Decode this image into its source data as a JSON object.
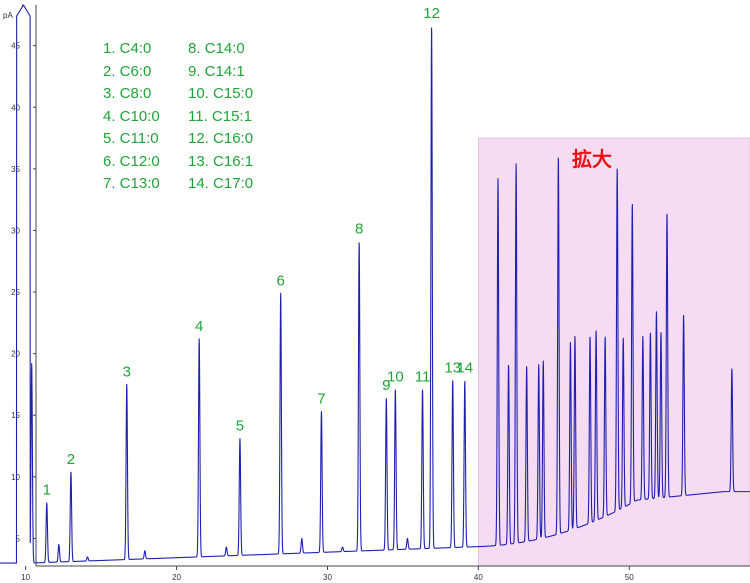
{
  "chart_data": {
    "type": "line",
    "y_unit": "pA",
    "xlim": [
      8.3,
      58
    ],
    "ylim": [
      2.6,
      48.3
    ],
    "x_ticks": [
      "10",
      "20",
      "30",
      "40",
      "50"
    ],
    "y_ticks": [
      "5",
      "10",
      "15",
      "20",
      "25",
      "30",
      "35",
      "40",
      "45"
    ],
    "series_color": "#2020b0",
    "peaks": [
      {
        "label": "1",
        "x": 11.4,
        "y": 7.9
      },
      {
        "label": "2",
        "x": 13.0,
        "y": 10.4
      },
      {
        "label": "3",
        "x": 16.7,
        "y": 17.5
      },
      {
        "label": "4",
        "x": 21.5,
        "y": 21.2
      },
      {
        "label": "5",
        "x": 24.2,
        "y": 13.1
      },
      {
        "label": "6",
        "x": 26.9,
        "y": 24.9
      },
      {
        "label": "7",
        "x": 29.6,
        "y": 15.3
      },
      {
        "label": "8",
        "x": 32.1,
        "y": 29.1
      },
      {
        "label": "9",
        "x": 33.9,
        "y": 16.4
      },
      {
        "label": "10",
        "x": 34.5,
        "y": 17.1
      },
      {
        "label": "11",
        "x": 36.3,
        "y": 17.1
      },
      {
        "label": "12",
        "x": 36.9,
        "y": 46.6
      },
      {
        "label": "13",
        "x": 38.3,
        "y": 17.8
      },
      {
        "label": "14",
        "x": 39.1,
        "y": 17.8
      }
    ],
    "minor_peaks": [
      {
        "x": 9.8,
        "y": 48.3
      },
      {
        "x": 10.4,
        "y": 19.2
      },
      {
        "x": 12.2,
        "y": 4.5
      },
      {
        "x": 14.1,
        "y": 3.5
      },
      {
        "x": 17.9,
        "y": 4.0
      },
      {
        "x": 23.3,
        "y": 4.3
      },
      {
        "x": 28.3,
        "y": 5.0
      },
      {
        "x": 31.0,
        "y": 4.3
      },
      {
        "x": 35.3,
        "y": 5.0
      },
      {
        "x": 41.3,
        "y": 34.2
      },
      {
        "x": 42.0,
        "y": 19.1
      },
      {
        "x": 42.5,
        "y": 35.4
      },
      {
        "x": 43.2,
        "y": 19.0
      },
      {
        "x": 44.0,
        "y": 19.1
      },
      {
        "x": 44.3,
        "y": 19.4
      },
      {
        "x": 45.3,
        "y": 36.0
      },
      {
        "x": 46.1,
        "y": 20.9
      },
      {
        "x": 46.4,
        "y": 21.4
      },
      {
        "x": 47.4,
        "y": 21.4
      },
      {
        "x": 47.8,
        "y": 21.9
      },
      {
        "x": 48.4,
        "y": 21.4
      },
      {
        "x": 49.2,
        "y": 35.1
      },
      {
        "x": 49.6,
        "y": 21.3
      },
      {
        "x": 50.2,
        "y": 32.2
      },
      {
        "x": 50.9,
        "y": 21.4
      },
      {
        "x": 51.4,
        "y": 21.7
      },
      {
        "x": 51.8,
        "y": 23.4
      },
      {
        "x": 52.1,
        "y": 21.7
      },
      {
        "x": 52.5,
        "y": 31.4
      },
      {
        "x": 53.6,
        "y": 23.1
      },
      {
        "x": 56.8,
        "y": 18.8
      }
    ],
    "legend": [
      "1. C4:0",
      "2. C6:0",
      "3. C8:0",
      "4. C10:0",
      "5. C11:0",
      "6. C12:0",
      "7. C13:0",
      "8. C14:0",
      "9. C14:1",
      "10. C15:0",
      "11. C15:1",
      "12. C16:0",
      "13. C16:1",
      "14. C17:0"
    ],
    "highlight": {
      "label": "拡大",
      "x_from": 40.0,
      "x_to": 58,
      "color": "#f6dcf2"
    }
  }
}
